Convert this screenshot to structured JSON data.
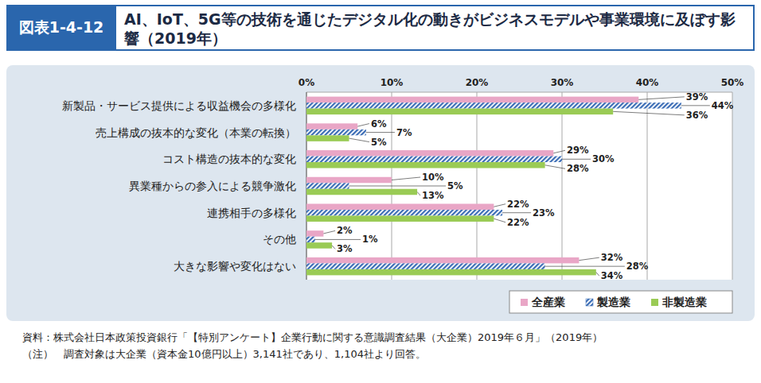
{
  "header": {
    "figure_number": "図表1-4-12"
  },
  "chart_data": {
    "type": "bar",
    "orientation": "horizontal",
    "title": "AI、IoT、5G等の技術を通じたデジタル化の動きがビジネスモデルや事業環境に及ぼす影響（2019年）",
    "categories": [
      "新製品・サービス提供による収益機会の多様化",
      "売上構成の抜本的な変化（本業の転換）",
      "コスト構造の抜本的な変化",
      "異業種からの参入による競争激化",
      "連携相手の多様化",
      "その他",
      "大きな影響や変化はない"
    ],
    "series": [
      {
        "name": "全産業",
        "color": "#e9a6c6",
        "values": [
          39,
          6,
          29,
          10,
          22,
          2,
          32
        ],
        "value_labels": [
          "39%",
          "6%",
          "29%",
          "10%",
          "22%",
          "2%",
          "32%"
        ]
      },
      {
        "name": "製造業",
        "color": "#3a6cb5",
        "values": [
          44,
          7,
          30,
          5,
          23,
          1,
          28
        ],
        "value_labels": [
          "44%",
          "7%",
          "30%",
          "5%",
          "23%",
          "1%",
          "28%"
        ]
      },
      {
        "name": "非製造業",
        "color": "#9acb55",
        "values": [
          36,
          5,
          28,
          13,
          22,
          3,
          34
        ],
        "value_labels": [
          "36%",
          "5%",
          "28%",
          "13%",
          "22%",
          "3%",
          "34%"
        ]
      }
    ],
    "xlim": [
      0,
      50
    ],
    "xticks": [
      {
        "value": 0,
        "label": "0%"
      },
      {
        "value": 10,
        "label": "10%"
      },
      {
        "value": 20,
        "label": "20%"
      },
      {
        "value": 30,
        "label": "30%"
      },
      {
        "value": 40,
        "label": "40%"
      },
      {
        "value": 50,
        "label": "50%"
      }
    ],
    "grid": true,
    "legend": "bottom-right",
    "data_labels": true,
    "notes": [
      "資料：株式会社日本政策投資銀行「【特別アンケート】企業行動に関する意識調査結果（大企業）2019年６月」（2019年）",
      "（注）　調査対象は大企業（資本金10億円以上）3,141社であり、1,104社より回答。"
    ]
  }
}
